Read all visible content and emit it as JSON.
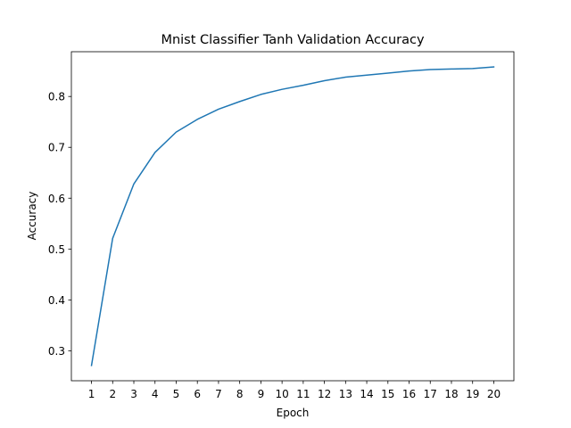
{
  "chart_data": {
    "type": "line",
    "title": "Mnist Classifier Tanh Validation Accuracy",
    "xlabel": "Epoch",
    "ylabel": "Accuracy",
    "x": [
      1,
      2,
      3,
      4,
      5,
      6,
      7,
      8,
      9,
      10,
      11,
      12,
      13,
      14,
      15,
      16,
      17,
      18,
      19,
      20
    ],
    "x_tick_labels": [
      "1",
      "2",
      "3",
      "4",
      "5",
      "6",
      "7",
      "8",
      "9",
      "10",
      "11",
      "12",
      "13",
      "14",
      "15",
      "16",
      "17",
      "18",
      "19",
      "20"
    ],
    "y_ticks": [
      0.3,
      0.4,
      0.5,
      0.6,
      0.7,
      0.8
    ],
    "y_tick_labels": [
      "0.3",
      "0.4",
      "0.5",
      "0.6",
      "0.7",
      "0.8"
    ],
    "xlim": [
      0.05,
      20.95
    ],
    "ylim": [
      0.241,
      0.888
    ],
    "grid": false,
    "series": [
      {
        "color": "#1f77b4",
        "values": [
          0.271,
          0.521,
          0.628,
          0.69,
          0.73,
          0.755,
          0.775,
          0.79,
          0.804,
          0.814,
          0.822,
          0.831,
          0.838,
          0.842,
          0.846,
          0.85,
          0.853,
          0.854,
          0.855,
          0.858
        ]
      }
    ]
  }
}
